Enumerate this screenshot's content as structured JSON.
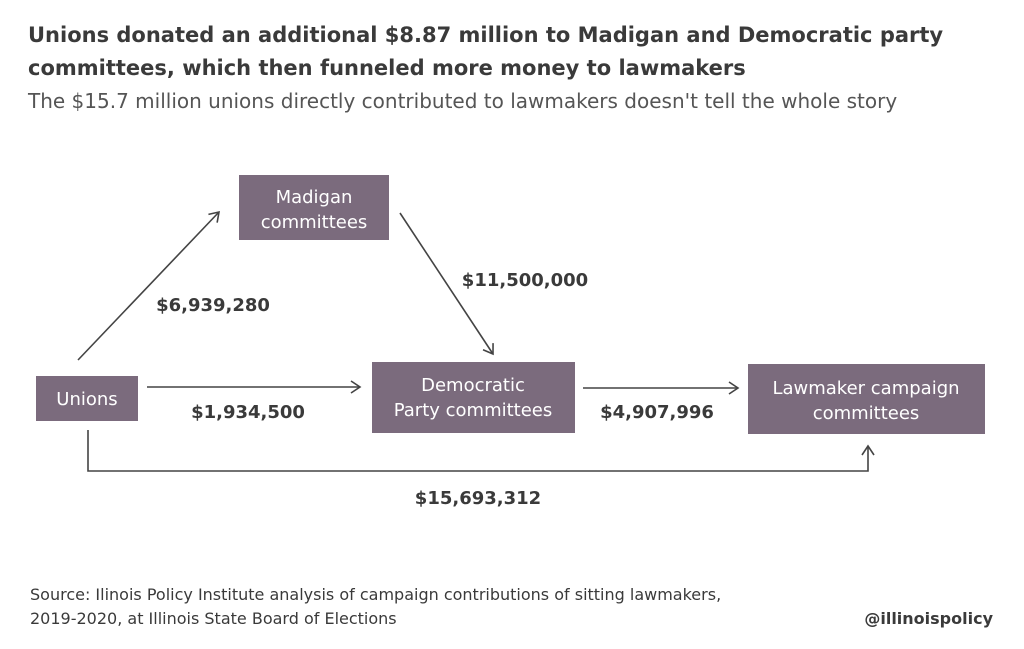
{
  "header": {
    "title": [
      "Unions donated an additional $8.87 million to Madigan and Democratic party",
      "committees, which then funneled more money to lawmakers"
    ],
    "subtitle": "The $15.7 million unions directly contributed to lawmakers doesn't tell the whole story"
  },
  "nodes": [
    {
      "label": [
        "Madigan",
        "committees"
      ]
    },
    {
      "label": [
        "Unions"
      ]
    },
    {
      "label": [
        "Democratic",
        "Party committees"
      ]
    },
    {
      "label": [
        "Lawmaker campaign",
        "committees"
      ]
    }
  ],
  "edges": [
    {
      "label": "$6,939,280"
    },
    {
      "label": "$11,500,000"
    },
    {
      "label": "$1,934,500"
    },
    {
      "label": "$4,907,996"
    },
    {
      "label": "$15,693,312"
    }
  ],
  "footer": {
    "source": [
      "Source: Ilinois Policy Institute analysis of campaign contributions of sitting lawmakers,",
      "2019-2020, at Illinois State Board of Elections"
    ],
    "handle": "@illinoispolicy"
  }
}
